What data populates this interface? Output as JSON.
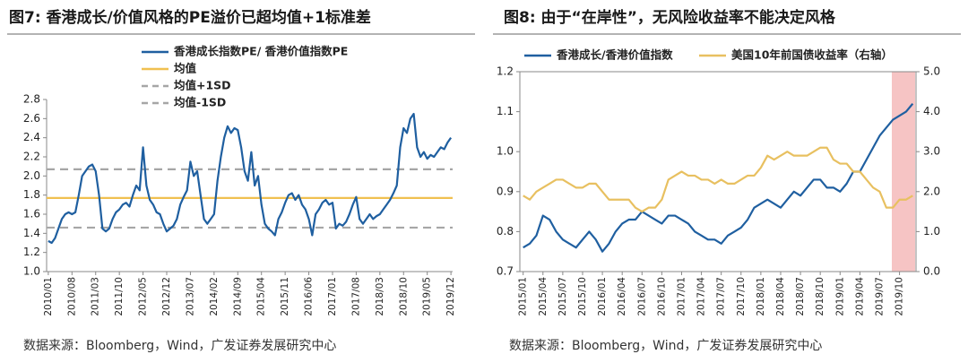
{
  "chart_data": [
    {
      "type": "line",
      "title": "图7: 香港成长/价值风格的PE溢价已超均值+1标准差",
      "source": "数据来源：Bloomberg，Wind，广发证券发展研究中心",
      "categories": [
        "2010/01",
        null,
        null,
        null,
        null,
        null,
        null,
        "2010/08",
        null,
        null,
        null,
        null,
        null,
        null,
        "2011/03",
        null,
        null,
        null,
        null,
        null,
        null,
        "2011/10",
        null,
        null,
        null,
        null,
        null,
        null,
        "2012/05",
        null,
        null,
        null,
        null,
        null,
        null,
        "2012/12",
        null,
        null,
        null,
        null,
        null,
        null,
        "2013/07",
        null,
        null,
        null,
        null,
        null,
        null,
        "2014/02",
        null,
        null,
        null,
        null,
        null,
        null,
        "2014/09",
        null,
        null,
        null,
        null,
        null,
        null,
        "2015/04",
        null,
        null,
        null,
        null,
        null,
        null,
        "2015/11",
        null,
        null,
        null,
        null,
        null,
        null,
        "2016/06",
        null,
        null,
        null,
        null,
        null,
        null,
        "2017/01",
        null,
        null,
        null,
        null,
        null,
        null,
        "2017/08",
        null,
        null,
        null,
        null,
        null,
        null,
        "2018/03",
        null,
        null,
        null,
        null,
        null,
        null,
        "2018/10",
        null,
        null,
        null,
        null,
        null,
        null,
        "2019/05",
        null,
        null,
        null,
        null,
        null,
        null,
        "2019/12"
      ],
      "series": [
        {
          "name": "香港成长指数PE/ 香港价值指数PE",
          "color": "#1f5fa0",
          "values": [
            1.32,
            1.3,
            1.35,
            1.45,
            1.55,
            1.6,
            1.62,
            1.6,
            1.62,
            1.8,
            2.0,
            2.05,
            2.1,
            2.12,
            2.05,
            1.8,
            1.45,
            1.42,
            1.45,
            1.55,
            1.62,
            1.65,
            1.7,
            1.72,
            1.68,
            1.8,
            1.9,
            1.85,
            2.3,
            1.9,
            1.75,
            1.7,
            1.62,
            1.6,
            1.5,
            1.42,
            1.45,
            1.48,
            1.55,
            1.7,
            1.78,
            1.85,
            2.15,
            2.0,
            2.05,
            1.8,
            1.55,
            1.5,
            1.55,
            1.6,
            1.95,
            2.2,
            2.4,
            2.52,
            2.45,
            2.5,
            2.48,
            2.3,
            2.05,
            1.95,
            2.25,
            1.9,
            2.0,
            1.7,
            1.5,
            1.45,
            1.42,
            1.38,
            1.55,
            1.62,
            1.72,
            1.8,
            1.82,
            1.75,
            1.8,
            1.7,
            1.65,
            1.55,
            1.38,
            1.6,
            1.65,
            1.72,
            1.75,
            1.7,
            1.72,
            1.45,
            1.5,
            1.48,
            1.52,
            1.6,
            1.7,
            1.78,
            1.55,
            1.5,
            1.55,
            1.6,
            1.55,
            1.58,
            1.6,
            1.65,
            1.7,
            1.75,
            1.82,
            1.9,
            2.3,
            2.5,
            2.45,
            2.6,
            2.65,
            2.3,
            2.2,
            2.25,
            2.18,
            2.22,
            2.2,
            2.25,
            2.3,
            2.28,
            2.35,
            2.4
          ]
        }
      ],
      "reference_lines": [
        {
          "name": "均值",
          "color": "#f0c050",
          "value": 1.77,
          "dashed": false
        },
        {
          "name": "均值+1SD",
          "color": "#a6a6a6",
          "value": 2.07,
          "dashed": true
        },
        {
          "name": "均值-1SD",
          "color": "#a6a6a6",
          "value": 1.46,
          "dashed": true
        }
      ],
      "ylim": [
        1.0,
        2.8
      ],
      "yticks": [
        {
          "value": 1,
          "label": "1.0"
        },
        1.2,
        1.4,
        1.6,
        1.8,
        {
          "value": 2,
          "label": "2.0"
        },
        2.2,
        2.4,
        2.6,
        2.8
      ],
      "legend": "top-left-vertical"
    },
    {
      "type": "line",
      "title": "图8: 由于“在岸性”，无风险收益率不能决定风格",
      "source": "数据来源：Bloomberg，Wind，广发证券发展研究中心",
      "categories": [
        "2015/01",
        null,
        null,
        "2015/04",
        null,
        null,
        "2015/07",
        null,
        null,
        "2015/10",
        null,
        null,
        "2016/01",
        null,
        null,
        "2016/04",
        null,
        null,
        "2016/07",
        null,
        null,
        "2016/10",
        null,
        null,
        "2017/01",
        null,
        null,
        "2017/04",
        null,
        null,
        "2017/07",
        null,
        null,
        "2017/10",
        null,
        null,
        "2018/01",
        null,
        null,
        "2018/04",
        null,
        null,
        "2018/07",
        null,
        null,
        "2018/10",
        null,
        null,
        "2019/01",
        null,
        null,
        "2019/04",
        null,
        null,
        "2019/07",
        null,
        null,
        "2019/10",
        null,
        null
      ],
      "series": [
        {
          "name": "香港成长/香港价值指数",
          "color": "#1f5fa0",
          "values": [
            0.76,
            0.77,
            0.79,
            0.84,
            0.83,
            0.8,
            0.78,
            0.77,
            0.76,
            0.78,
            0.8,
            0.78,
            0.75,
            0.77,
            0.8,
            0.82,
            0.83,
            0.83,
            0.85,
            0.84,
            0.83,
            0.82,
            0.84,
            0.84,
            0.83,
            0.82,
            0.8,
            0.79,
            0.78,
            0.78,
            0.77,
            0.79,
            0.8,
            0.81,
            0.83,
            0.86,
            0.87,
            0.88,
            0.87,
            0.86,
            0.88,
            0.9,
            0.89,
            0.91,
            0.93,
            0.93,
            0.91,
            0.91,
            0.9,
            0.92,
            0.95,
            0.95,
            0.98,
            1.01,
            1.04,
            1.06,
            1.08,
            1.09,
            1.1,
            1.12
          ]
        },
        {
          "name": "美国10年前国债收益率（右轴）",
          "color": "#e8c060",
          "axis": "y2",
          "values": [
            1.9,
            1.8,
            2.0,
            2.1,
            2.2,
            2.3,
            2.3,
            2.2,
            2.1,
            2.1,
            2.2,
            2.2,
            2.0,
            1.8,
            1.8,
            1.8,
            1.8,
            1.6,
            1.5,
            1.6,
            1.6,
            1.8,
            2.3,
            2.4,
            2.5,
            2.4,
            2.4,
            2.3,
            2.3,
            2.2,
            2.3,
            2.2,
            2.2,
            2.3,
            2.4,
            2.4,
            2.6,
            2.9,
            2.8,
            2.9,
            3.0,
            2.9,
            2.9,
            2.9,
            3.0,
            3.1,
            3.1,
            2.8,
            2.7,
            2.7,
            2.5,
            2.5,
            2.3,
            2.1,
            2.0,
            1.6,
            1.6,
            1.8,
            1.8,
            1.9
          ]
        }
      ],
      "ylim": [
        0.7,
        1.2
      ],
      "yticks": [
        0.7,
        0.8,
        0.9,
        {
          "value": 1,
          "label": "1.0"
        },
        1.1,
        1.2
      ],
      "y2lim": [
        0,
        5
      ],
      "y2ticks": [
        {
          "value": 0,
          "label": "0.0"
        },
        {
          "value": 1,
          "label": "1.0"
        },
        {
          "value": 2,
          "label": "2.0"
        },
        {
          "value": 3,
          "label": "3.0"
        },
        {
          "value": 4,
          "label": "4.0"
        },
        {
          "value": 5,
          "label": "5.0"
        }
      ],
      "legend": "top-row"
    }
  ]
}
